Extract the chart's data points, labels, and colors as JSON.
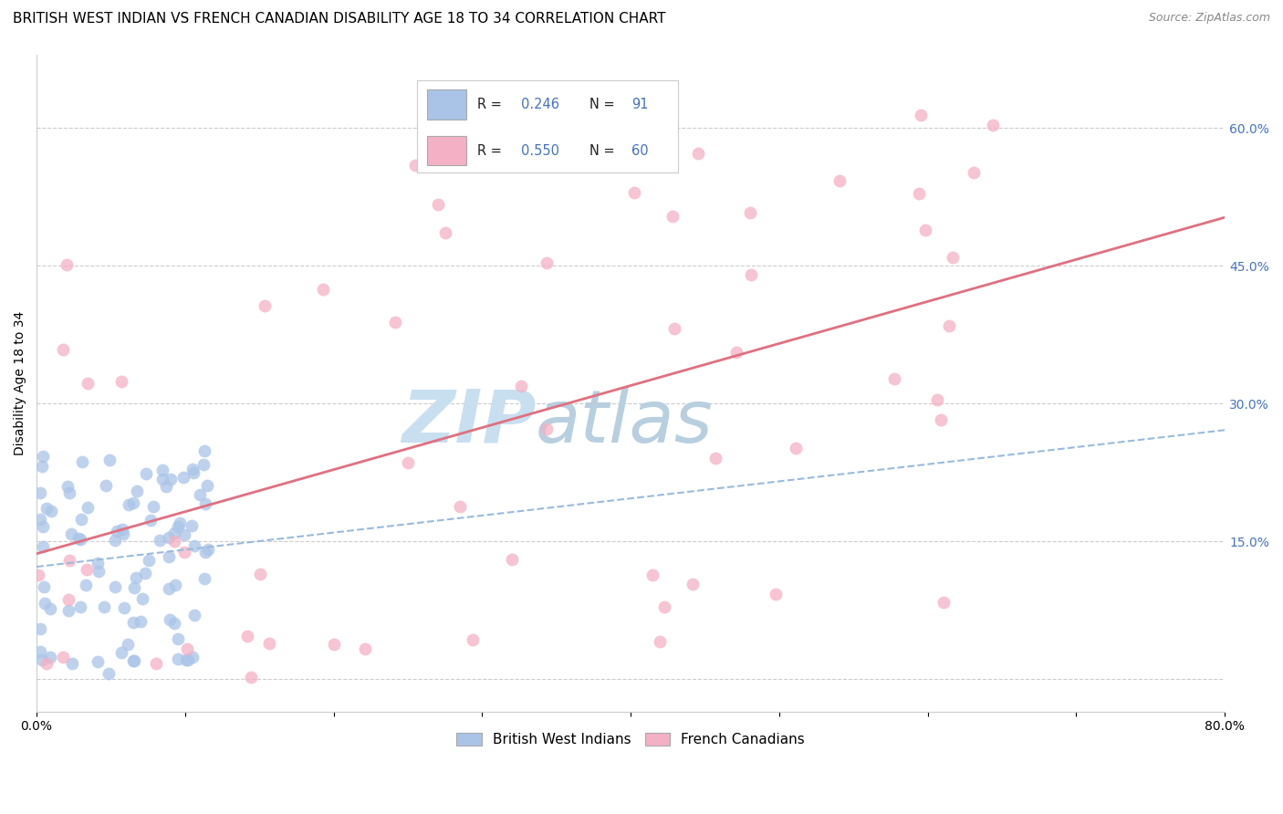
{
  "title": "BRITISH WEST INDIAN VS FRENCH CANADIAN DISABILITY AGE 18 TO 34 CORRELATION CHART",
  "source": "Source: ZipAtlas.com",
  "ylabel": "Disability Age 18 to 34",
  "xlim": [
    0.0,
    0.8
  ],
  "ylim": [
    -0.035,
    0.68
  ],
  "xticks": [
    0.0,
    0.1,
    0.2,
    0.3,
    0.4,
    0.5,
    0.6,
    0.7,
    0.8
  ],
  "xticklabels": [
    "0.0%",
    "",
    "",
    "",
    "",
    "",
    "",
    "",
    "80.0%"
  ],
  "yticks_right": [
    0.0,
    0.15,
    0.3,
    0.45,
    0.6
  ],
  "yticklabels_right": [
    "",
    "15.0%",
    "30.0%",
    "45.0%",
    "60.0%"
  ],
  "blue_R": 0.246,
  "blue_N": 91,
  "pink_R": 0.55,
  "pink_N": 60,
  "blue_color": "#aac4e8",
  "pink_color": "#f4b0c4",
  "blue_line_color": "#99bbdd",
  "pink_line_color": "#e07080",
  "legend_label_blue": "British West Indians",
  "legend_label_pink": "French Canadians",
  "watermark_zip": "ZIP",
  "watermark_atlas": "atlas",
  "watermark_color_zip": "#c8dff0",
  "watermark_color_atlas": "#b8cfe0",
  "grid_color": "#cccccc",
  "title_fontsize": 11,
  "axis_label_fontsize": 10,
  "tick_fontsize": 10,
  "blue_seed": 42,
  "pink_seed": 123
}
